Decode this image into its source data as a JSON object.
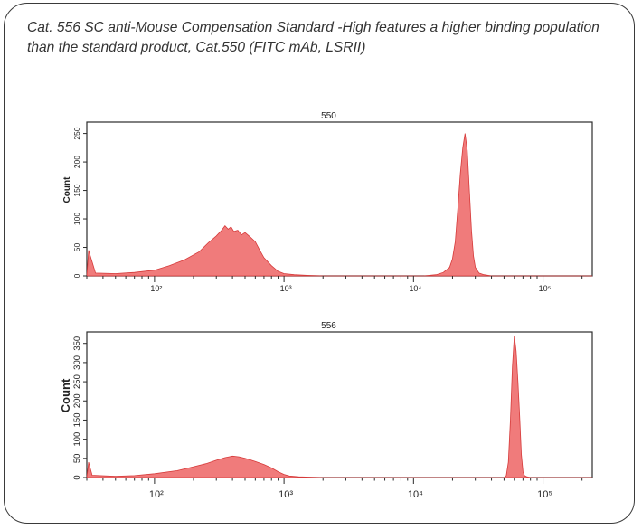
{
  "caption": "Cat. 556 SC anti-Mouse Compensation Standard -High features a higher binding population than the standard product, Cat.550 (FITC mAb, LSRII)",
  "colors": {
    "fill": "#f07b7b",
    "stroke": "#d63a3a",
    "frame": "#2b2b2b"
  },
  "chart_data": [
    {
      "type": "area",
      "title": "550",
      "xlabel": "",
      "ylabel": "Count",
      "x_scale": "log",
      "xlim": [
        30,
        240000
      ],
      "ylim": [
        0,
        270
      ],
      "x_ticks": [
        {
          "value": 100,
          "label": "10²"
        },
        {
          "value": 1000,
          "label": "10³"
        },
        {
          "value": 10000,
          "label": "10⁴"
        },
        {
          "value": 100000,
          "label": "10⁵"
        }
      ],
      "y_ticks": [
        0,
        50,
        100,
        150,
        200,
        250
      ],
      "series": [
        {
          "x": [
            30,
            31,
            35,
            50,
            70,
            100,
            130,
            170,
            220,
            260,
            300,
            330,
            350,
            370,
            390,
            410,
            440,
            470,
            500,
            550,
            600,
            650,
            700,
            800,
            900,
            1000,
            1200,
            1500,
            2000,
            3000,
            5000,
            8000,
            12000,
            15000,
            17000,
            19000,
            20000,
            21000,
            22000,
            23000,
            24000,
            25000,
            26000,
            27000,
            28000,
            29000,
            30000,
            32000,
            35000,
            40000,
            50000,
            80000,
            150000,
            240000
          ],
          "y": [
            0,
            45,
            5,
            4,
            6,
            10,
            18,
            28,
            42,
            58,
            70,
            80,
            88,
            82,
            86,
            78,
            80,
            72,
            76,
            68,
            60,
            45,
            32,
            18,
            8,
            4,
            2,
            1,
            0,
            0,
            0,
            0,
            0,
            2,
            6,
            15,
            30,
            60,
            120,
            180,
            225,
            250,
            220,
            150,
            80,
            35,
            15,
            5,
            2,
            0,
            0,
            0,
            0,
            0
          ]
        }
      ]
    },
    {
      "type": "area",
      "title": "556",
      "xlabel": "",
      "ylabel": "Count",
      "x_scale": "log",
      "xlim": [
        30,
        240000
      ],
      "ylim": [
        0,
        380
      ],
      "x_ticks": [
        {
          "value": 100,
          "label": "10²"
        },
        {
          "value": 1000,
          "label": "10³"
        },
        {
          "value": 10000,
          "label": "10⁴"
        },
        {
          "value": 100000,
          "label": "10⁵"
        }
      ],
      "y_ticks": [
        0,
        50,
        100,
        150,
        200,
        250,
        300,
        350
      ],
      "y_tick_labels_visible": [
        "0",
        "50",
        "100",
        "150",
        "200",
        "250",
        "300",
        "350"
      ],
      "series": [
        {
          "x": [
            30,
            31,
            33,
            50,
            70,
            100,
            150,
            200,
            250,
            300,
            350,
            400,
            450,
            500,
            550,
            600,
            700,
            800,
            900,
            1000,
            1100,
            1300,
            2000,
            5000,
            20000,
            40000,
            50000,
            52000,
            54000,
            56000,
            58000,
            60000,
            62000,
            64000,
            66000,
            68000,
            70000,
            72000,
            75000,
            80000,
            90000,
            240000
          ],
          "y": [
            0,
            40,
            6,
            3,
            5,
            10,
            18,
            28,
            36,
            45,
            52,
            56,
            54,
            50,
            46,
            42,
            34,
            25,
            15,
            8,
            4,
            2,
            0,
            0,
            0,
            0,
            0,
            5,
            40,
            150,
            290,
            370,
            330,
            250,
            160,
            60,
            15,
            5,
            2,
            0,
            0,
            0
          ]
        }
      ]
    }
  ]
}
